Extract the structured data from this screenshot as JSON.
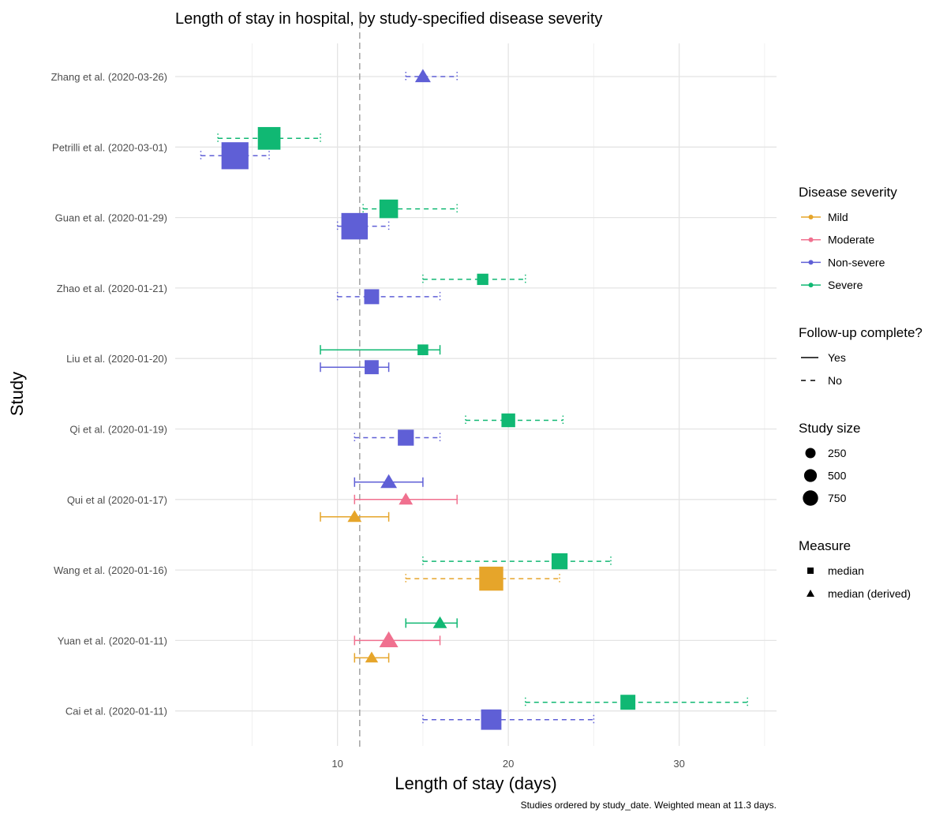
{
  "chart_data": {
    "type": "scatter",
    "subtype": "interval-dot-plot",
    "title": "Length of stay in hospital, by study-specified disease severity",
    "xlabel": "Length of stay (days)",
    "ylabel": "Study",
    "caption": "Studies ordered by study_date. Weighted mean at 11.3 days.",
    "xlim": [
      0.5,
      35.7
    ],
    "x_ticks": [
      10,
      20,
      30
    ],
    "reference_line": {
      "x": 11.3,
      "style": "dashed",
      "color": "#a8a8a8"
    },
    "grid": true,
    "legend_position": "right",
    "studies": [
      "Zhang et al. (2020-03-26)",
      "Petrilli et al. (2020-03-01)",
      "Guan et al. (2020-01-29)",
      "Zhao et al. (2020-01-21)",
      "Liu et al. (2020-01-20)",
      "Qi et al. (2020-01-19)",
      "Qui et al (2020-01-17)",
      "Wang et al. (2020-01-16)",
      "Yuan et al. (2020-01-11)",
      "Cai et al. (2020-01-11)"
    ],
    "severity_colors": {
      "Mild": "#E6A52A",
      "Moderate": "#F0708F",
      "Non-severe": "#5F5FD6",
      "Severe": "#10B873"
    },
    "points": [
      {
        "study": "Zhang et al. (2020-03-26)",
        "severity": "Non-severe",
        "value": 15,
        "low": 14,
        "high": 17,
        "complete": "No",
        "measure": "median (derived)",
        "size": 100
      },
      {
        "study": "Petrilli et al. (2020-03-01)",
        "severity": "Severe",
        "value": 6,
        "low": 3,
        "high": 9,
        "complete": "No",
        "measure": "median",
        "size": 550
      },
      {
        "study": "Petrilli et al. (2020-03-01)",
        "severity": "Non-severe",
        "value": 4,
        "low": 2,
        "high": 6,
        "complete": "No",
        "measure": "median",
        "size": 900
      },
      {
        "study": "Guan et al. (2020-01-29)",
        "severity": "Severe",
        "value": 13,
        "low": 11.5,
        "high": 17,
        "complete": "No",
        "measure": "median",
        "size": 300
      },
      {
        "study": "Guan et al. (2020-01-29)",
        "severity": "Non-severe",
        "value": 11,
        "low": 10,
        "high": 13,
        "complete": "No",
        "measure": "median",
        "size": 850
      },
      {
        "study": "Zhao et al. (2020-01-21)",
        "severity": "Severe",
        "value": 18.5,
        "low": 15,
        "high": 21,
        "complete": "No",
        "measure": "median",
        "size": 40
      },
      {
        "study": "Zhao et al. (2020-01-21)",
        "severity": "Non-severe",
        "value": 12,
        "low": 10,
        "high": 16,
        "complete": "No",
        "measure": "median",
        "size": 140
      },
      {
        "study": "Liu et al. (2020-01-20)",
        "severity": "Severe",
        "value": 15,
        "low": 9,
        "high": 16,
        "complete": "Yes",
        "measure": "median",
        "size": 30
      },
      {
        "study": "Liu et al. (2020-01-20)",
        "severity": "Non-severe",
        "value": 12,
        "low": 9,
        "high": 13,
        "complete": "Yes",
        "measure": "median",
        "size": 110
      },
      {
        "study": "Qi et al. (2020-01-19)",
        "severity": "Severe",
        "value": 20,
        "low": 17.5,
        "high": 23.2,
        "complete": "No",
        "measure": "median",
        "size": 100
      },
      {
        "study": "Qi et al. (2020-01-19)",
        "severity": "Non-severe",
        "value": 14,
        "low": 11,
        "high": 16,
        "complete": "No",
        "measure": "median",
        "size": 180
      },
      {
        "study": "Qui et al (2020-01-17)",
        "severity": "Non-severe",
        "value": 13,
        "low": 11,
        "high": 15,
        "complete": "Yes",
        "measure": "median (derived)",
        "size": 120
      },
      {
        "study": "Qui et al (2020-01-17)",
        "severity": "Moderate",
        "value": 14,
        "low": 11,
        "high": 17,
        "complete": "Yes",
        "measure": "median (derived)",
        "size": 60
      },
      {
        "study": "Qui et al (2020-01-17)",
        "severity": "Mild",
        "value": 11,
        "low": 9,
        "high": 13,
        "complete": "Yes",
        "measure": "median (derived)",
        "size": 60
      },
      {
        "study": "Wang et al. (2020-01-16)",
        "severity": "Severe",
        "value": 23,
        "low": 15,
        "high": 26,
        "complete": "No",
        "measure": "median",
        "size": 180
      },
      {
        "study": "Wang et al. (2020-01-16)",
        "severity": "Mild",
        "value": 19,
        "low": 14,
        "high": 23,
        "complete": "No",
        "measure": "median",
        "size": 650
      },
      {
        "study": "Yuan et al. (2020-01-11)",
        "severity": "Severe",
        "value": 16,
        "low": 14,
        "high": 17,
        "complete": "Yes",
        "measure": "median (derived)",
        "size": 60
      },
      {
        "study": "Yuan et al. (2020-01-11)",
        "severity": "Moderate",
        "value": 13,
        "low": 11,
        "high": 16,
        "complete": "Yes",
        "measure": "median (derived)",
        "size": 200
      },
      {
        "study": "Yuan et al. (2020-01-11)",
        "severity": "Mild",
        "value": 12,
        "low": 11,
        "high": 13,
        "complete": "Yes",
        "measure": "median (derived)",
        "size": 40
      },
      {
        "study": "Cai et al. (2020-01-11)",
        "severity": "Severe",
        "value": 27,
        "low": 21,
        "high": 34,
        "complete": "No",
        "measure": "median",
        "size": 140
      },
      {
        "study": "Cai et al. (2020-01-11)",
        "severity": "Non-severe",
        "value": 19,
        "low": 15,
        "high": 25,
        "complete": "No",
        "measure": "median",
        "size": 400
      }
    ],
    "legend": {
      "severity": {
        "title": "Disease severity",
        "items": [
          "Mild",
          "Moderate",
          "Non-severe",
          "Severe"
        ]
      },
      "followup": {
        "title": "Follow-up complete?",
        "items": [
          {
            "label": "Yes",
            "linetype": "solid"
          },
          {
            "label": "No",
            "linetype": "dashed"
          }
        ]
      },
      "size": {
        "title": "Study size",
        "items": [
          250,
          500,
          750
        ]
      },
      "measure": {
        "title": "Measure",
        "items": [
          {
            "label": "median",
            "shape": "square"
          },
          {
            "label": "median (derived)",
            "shape": "triangle"
          }
        ]
      }
    }
  }
}
